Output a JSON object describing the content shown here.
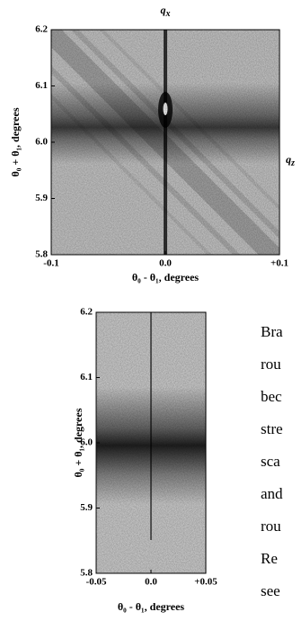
{
  "figures": [
    {
      "title": {
        "symbol": "q",
        "subscript": "x"
      },
      "side_label": {
        "symbol": "q",
        "subscript": "z"
      },
      "y_label": "θ₀ + θ₁, degrees",
      "x_label": "θ₀ - θ₁, degrees",
      "y_ticks": [
        "6.2",
        "6.1",
        "6.0",
        "5.9",
        "5.8"
      ],
      "x_ticks": [
        "-0.1",
        "0.0",
        "+0.1"
      ]
    },
    {
      "y_label": "θ₀ + θ₁, degrees",
      "x_label": "θ₀ - θ₁, degrees",
      "y_ticks": [
        "6.2",
        "6.1",
        "6.0",
        "5.9",
        "5.8"
      ],
      "x_ticks": [
        "-0.05",
        "0.0",
        "+0.05"
      ]
    }
  ],
  "body_text": [
    "Bra",
    "rou",
    "bec",
    "stre",
    "sca",
    "and",
    "rou",
    "Re",
    "see"
  ]
}
